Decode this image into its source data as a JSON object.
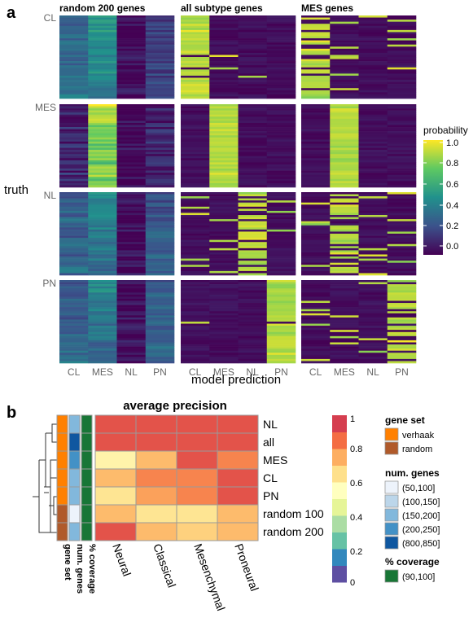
{
  "panel_a": {
    "label": "a",
    "col_titles": [
      "random 200 genes",
      "all subtype genes",
      "MES genes"
    ],
    "truth_label": "truth",
    "row_labels": [
      "CL",
      "MES",
      "NL",
      "PN"
    ],
    "x_ticks": [
      "CL",
      "MES",
      "NL",
      "PN"
    ],
    "xlabel": "model prediction",
    "legend_title": "probability",
    "legend_ticks": [
      "1.0",
      "0.8",
      "0.6",
      "0.4",
      "0.2",
      "0.0"
    ]
  },
  "panel_b": {
    "label": "b",
    "title": "average precision",
    "annotation_cols": [
      "gene set",
      "num. genes",
      "% coverage"
    ],
    "legend": {
      "scale_ticks": [
        "1",
        "0.8",
        "0.6",
        "0.4",
        "0.2",
        "0"
      ],
      "gene_set_title": "gene set",
      "gene_set_items": [
        {
          "label": "verhaak",
          "color": "#ff8000"
        },
        {
          "label": "random",
          "color": "#b05a2a"
        }
      ],
      "num_genes_title": "num. genes",
      "num_genes_items": [
        {
          "label": "(50,100]",
          "color": "#edf3fb"
        },
        {
          "label": "(100,150]",
          "color": "#bcd6ea"
        },
        {
          "label": "(150,200]",
          "color": "#82b8dc"
        },
        {
          "label": "(200,250]",
          "color": "#4391c6"
        },
        {
          "label": "(800,850]",
          "color": "#0f57a0"
        }
      ],
      "coverage_title": "% coverage",
      "coverage_items": [
        {
          "label": "(90,100]",
          "color": "#187636"
        }
      ]
    }
  },
  "colors": {
    "viridis": [
      "#440154",
      "#3b528b",
      "#21918c",
      "#5ec962",
      "#fde725"
    ],
    "spectral": [
      "#5e4fa2",
      "#3288bd",
      "#66c2a5",
      "#abdda4",
      "#e6f598",
      "#ffffbf",
      "#fee08b",
      "#fdae61",
      "#f46d43",
      "#d53e4f"
    ]
  },
  "chart_data": [
    {
      "type": "heatmap",
      "title": "",
      "description_units": "probability",
      "columns": [
        "CL",
        "MES",
        "NL",
        "PN"
      ],
      "truth_groups": [
        "CL",
        "MES",
        "NL",
        "PN"
      ],
      "panels": [
        {
          "name": "random 200 genes",
          "mean_probability": {
            "CL": [
              0.45,
              0.6,
              0.05,
              0.25
            ],
            "MES": [
              0.12,
              0.85,
              0.03,
              0.12
            ],
            "NL": [
              0.35,
              0.45,
              0.05,
              0.3
            ],
            "PN": [
              0.35,
              0.45,
              0.05,
              0.35
            ]
          }
        },
        {
          "name": "all subtype genes",
          "mean_probability": {
            "CL": [
              0.9,
              0.05,
              0.0,
              0.05
            ],
            "MES": [
              0.0,
              1.0,
              0.0,
              0.0
            ],
            "NL": [
              0.2,
              0.1,
              0.7,
              0.1
            ],
            "PN": [
              0.05,
              0.05,
              0.05,
              0.95
            ]
          }
        },
        {
          "name": "MES genes",
          "mean_probability": {
            "CL": [
              0.5,
              0.35,
              0.0,
              0.15
            ],
            "MES": [
              0.0,
              1.0,
              0.0,
              0.0
            ],
            "NL": [
              0.2,
              0.5,
              0.1,
              0.3
            ],
            "PN": [
              0.25,
              0.15,
              0.0,
              0.6
            ]
          }
        }
      ],
      "ylim": [
        0,
        1
      ]
    },
    {
      "type": "heatmap",
      "title": "average precision",
      "rows": [
        "NL",
        "all",
        "MES",
        "CL",
        "PN",
        "random 100",
        "random 200"
      ],
      "columns": [
        "Neural",
        "Classical",
        "Mesenchymal",
        "Proneural"
      ],
      "values": [
        [
          0.95,
          0.95,
          0.95,
          0.95
        ],
        [
          0.95,
          0.95,
          0.95,
          0.95
        ],
        [
          0.6,
          0.75,
          0.95,
          0.85
        ],
        [
          0.75,
          0.85,
          0.85,
          0.95
        ],
        [
          0.65,
          0.8,
          0.85,
          0.95
        ],
        [
          0.75,
          0.65,
          0.65,
          0.75
        ],
        [
          0.95,
          0.75,
          0.7,
          0.75
        ]
      ],
      "annotations": {
        "gene set": [
          "verhaak",
          "verhaak",
          "verhaak",
          "verhaak",
          "verhaak",
          "random",
          "random"
        ],
        "num. genes": [
          "(150,200]",
          "(800,850]",
          "(200,250]",
          "(150,200]",
          "(150,200]",
          "(50,100]",
          "(150,200]"
        ],
        "% coverage": [
          "(90,100]",
          "(90,100]",
          "(90,100]",
          "(90,100]",
          "(90,100]",
          "(90,100]",
          "(90,100]"
        ]
      },
      "color_range": [
        0,
        1
      ]
    }
  ]
}
